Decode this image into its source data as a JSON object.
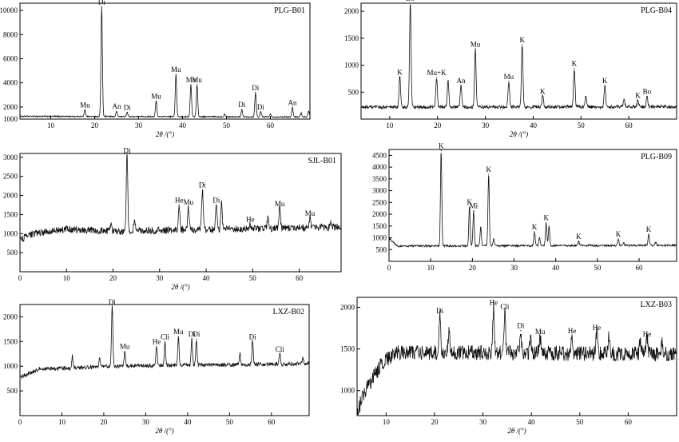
{
  "chart_data": [
    {
      "type": "line",
      "title": "PLG-B01",
      "xlabel": "2θ /(°)",
      "ylabel": "",
      "xlim": [
        3,
        69
      ],
      "ylim": [
        1000,
        10600
      ],
      "xticks": [
        10,
        20,
        30,
        40,
        50,
        60
      ],
      "yticks": [
        1000,
        2000,
        4000,
        6000,
        8000,
        10000
      ],
      "baseline": [
        [
          3,
          1230
        ],
        [
          69,
          1180
        ]
      ],
      "noise": 50,
      "peaks": [
        {
          "x": 17.8,
          "y": 1750,
          "label": "Mu"
        },
        {
          "x": 21.6,
          "y": 10300,
          "label": "Di"
        },
        {
          "x": 25.0,
          "y": 1650,
          "label": "An"
        },
        {
          "x": 27.4,
          "y": 1550,
          "label": "Di"
        },
        {
          "x": 34.0,
          "y": 2500,
          "label": "Mu"
        },
        {
          "x": 38.5,
          "y": 4700,
          "label": "Mu"
        },
        {
          "x": 41.9,
          "y": 3850,
          "label": "Mu"
        },
        {
          "x": 43.3,
          "y": 3850,
          "label": "Mu"
        },
        {
          "x": 53.5,
          "y": 1800,
          "label": "Di"
        },
        {
          "x": 56.6,
          "y": 3200,
          "label": "Di"
        },
        {
          "x": 57.8,
          "y": 1600,
          "label": "Di"
        },
        {
          "x": 65.0,
          "y": 1950,
          "label": "An"
        },
        {
          "x": 49.6,
          "y": 1420,
          "label": ""
        },
        {
          "x": 60.0,
          "y": 1400,
          "label": ""
        },
        {
          "x": 67.0,
          "y": 1500,
          "label": ""
        },
        {
          "x": 68.7,
          "y": 1650,
          "label": ""
        }
      ]
    },
    {
      "type": "line",
      "title": "PLG-B04",
      "xlabel": "2θ /(°)",
      "ylabel": "",
      "xlim": [
        4,
        70
      ],
      "ylim": [
        0,
        2150
      ],
      "xticks": [
        10,
        20,
        30,
        40,
        50,
        60
      ],
      "yticks": [
        500,
        1000,
        1500,
        2000
      ],
      "baseline": [
        [
          4,
          220
        ],
        [
          69,
          230
        ]
      ],
      "noise": 30,
      "peaks": [
        {
          "x": 12.1,
          "y": 780,
          "label": "K"
        },
        {
          "x": 14.3,
          "y": 2150,
          "label": "Bo"
        },
        {
          "x": 19.8,
          "y": 770,
          "label": "Mu+K"
        },
        {
          "x": 22.2,
          "y": 720,
          "label": ""
        },
        {
          "x": 24.9,
          "y": 620,
          "label": "An"
        },
        {
          "x": 27.9,
          "y": 1300,
          "label": "Mu"
        },
        {
          "x": 34.9,
          "y": 700,
          "label": "Mu"
        },
        {
          "x": 37.7,
          "y": 1380,
          "label": "K"
        },
        {
          "x": 42.0,
          "y": 420,
          "label": "K"
        },
        {
          "x": 48.6,
          "y": 940,
          "label": "K"
        },
        {
          "x": 55.0,
          "y": 620,
          "label": "K"
        },
        {
          "x": 61.9,
          "y": 350,
          "label": "K"
        },
        {
          "x": 63.8,
          "y": 420,
          "label": "Bo"
        },
        {
          "x": 51.0,
          "y": 420,
          "label": ""
        },
        {
          "x": 59.0,
          "y": 360,
          "label": ""
        }
      ]
    },
    {
      "type": "line",
      "title": "SJL-B01",
      "xlabel": "2θ /(°)",
      "ylabel": "",
      "xlim": [
        0,
        69
      ],
      "ylim": [
        0,
        3100
      ],
      "xticks": [
        0,
        10,
        20,
        30,
        40,
        50,
        60
      ],
      "yticks": [
        500,
        1000,
        1500,
        2000,
        2500,
        3000
      ],
      "baseline": [
        [
          0,
          850
        ],
        [
          3,
          1000
        ],
        [
          10,
          1120
        ],
        [
          20,
          1060
        ],
        [
          69,
          1170
        ]
      ],
      "noise": 90,
      "peaks": [
        {
          "x": 23.0,
          "y": 3050,
          "label": "Di"
        },
        {
          "x": 34.2,
          "y": 1750,
          "label": "He"
        },
        {
          "x": 36.2,
          "y": 1700,
          "label": "Mu"
        },
        {
          "x": 39.2,
          "y": 2150,
          "label": "Di"
        },
        {
          "x": 42.2,
          "y": 1750,
          "label": "Di"
        },
        {
          "x": 43.3,
          "y": 1800,
          "label": ""
        },
        {
          "x": 49.5,
          "y": 1250,
          "label": "He"
        },
        {
          "x": 53.3,
          "y": 1450,
          "label": ""
        },
        {
          "x": 55.8,
          "y": 1650,
          "label": "Mu"
        },
        {
          "x": 62.3,
          "y": 1400,
          "label": "Mu"
        },
        {
          "x": 24.6,
          "y": 1350,
          "label": ""
        },
        {
          "x": 19.5,
          "y": 1250,
          "label": ""
        },
        {
          "x": 66.8,
          "y": 1350,
          "label": ""
        }
      ]
    },
    {
      "type": "line",
      "title": "PLG-B09",
      "xlabel": "",
      "ylabel": "",
      "xlim": [
        0,
        69
      ],
      "ylim": [
        0,
        4750
      ],
      "xticks": [
        0,
        10,
        20,
        30,
        40,
        50,
        60
      ],
      "yticks": [
        500,
        1000,
        1500,
        2000,
        2500,
        3000,
        3500,
        4000,
        4500
      ],
      "baseline": [
        [
          0,
          1000
        ],
        [
          2,
          650
        ],
        [
          69,
          680
        ]
      ],
      "noise": 40,
      "peaks": [
        {
          "x": 12.5,
          "y": 4700,
          "label": "K"
        },
        {
          "x": 19.3,
          "y": 2300,
          "label": "K"
        },
        {
          "x": 20.3,
          "y": 2150,
          "label": "Mi"
        },
        {
          "x": 22.0,
          "y": 1450,
          "label": ""
        },
        {
          "x": 23.9,
          "y": 3700,
          "label": "K"
        },
        {
          "x": 25.1,
          "y": 950,
          "label": ""
        },
        {
          "x": 34.9,
          "y": 1250,
          "label": "K"
        },
        {
          "x": 36.1,
          "y": 1000,
          "label": ""
        },
        {
          "x": 37.7,
          "y": 1650,
          "label": "K"
        },
        {
          "x": 38.4,
          "y": 1500,
          "label": ""
        },
        {
          "x": 45.5,
          "y": 850,
          "label": "K"
        },
        {
          "x": 55.0,
          "y": 950,
          "label": "K"
        },
        {
          "x": 62.3,
          "y": 1150,
          "label": "K"
        },
        {
          "x": 56.3,
          "y": 800,
          "label": ""
        },
        {
          "x": 64.0,
          "y": 800,
          "label": ""
        }
      ]
    },
    {
      "type": "line",
      "title": "LXZ-B02",
      "xlabel": "2θ /(°)",
      "ylabel": "",
      "xlim": [
        0,
        69
      ],
      "ylim": [
        0,
        2250
      ],
      "xticks": [
        0,
        10,
        20,
        30,
        40,
        50,
        60
      ],
      "yticks": [
        500,
        1000,
        1500,
        2000
      ],
      "baseline": [
        [
          0,
          780
        ],
        [
          5,
          950
        ],
        [
          12,
          960
        ],
        [
          20,
          1000
        ],
        [
          69,
          1050
        ]
      ],
      "noise": 40,
      "peaks": [
        {
          "x": 12.5,
          "y": 1200,
          "label": ""
        },
        {
          "x": 22.0,
          "y": 2200,
          "label": "Di"
        },
        {
          "x": 25.0,
          "y": 1300,
          "label": "Mu"
        },
        {
          "x": 32.6,
          "y": 1400,
          "label": "He"
        },
        {
          "x": 34.6,
          "y": 1500,
          "label": "Cli"
        },
        {
          "x": 37.8,
          "y": 1600,
          "label": "Mu"
        },
        {
          "x": 41.0,
          "y": 1550,
          "label": "Di"
        },
        {
          "x": 42.1,
          "y": 1550,
          "label": "Di"
        },
        {
          "x": 52.5,
          "y": 1250,
          "label": ""
        },
        {
          "x": 55.5,
          "y": 1500,
          "label": "Di"
        },
        {
          "x": 62.0,
          "y": 1250,
          "label": "Cli"
        },
        {
          "x": 19.0,
          "y": 1150,
          "label": ""
        },
        {
          "x": 67.5,
          "y": 1180,
          "label": ""
        }
      ]
    },
    {
      "type": "line",
      "title": "LXZ-B03",
      "xlabel": "2θ /(°)",
      "ylabel": "",
      "xlim": [
        4,
        70
      ],
      "ylim": [
        700,
        2120
      ],
      "xticks": [
        10,
        20,
        30,
        40,
        50,
        60
      ],
      "yticks": [
        1000,
        1500,
        2000
      ],
      "baseline": [
        [
          4,
          700
        ],
        [
          5,
          920
        ],
        [
          9,
          1320
        ],
        [
          12,
          1460
        ],
        [
          70,
          1440
        ]
      ],
      "noise": 90,
      "peaks": [
        {
          "x": 21.1,
          "y": 1900,
          "label": "Di"
        },
        {
          "x": 23.0,
          "y": 1700,
          "label": ""
        },
        {
          "x": 32.2,
          "y": 2000,
          "label": "He"
        },
        {
          "x": 34.5,
          "y": 1950,
          "label": "Cli"
        },
        {
          "x": 37.8,
          "y": 1720,
          "label": "Di"
        },
        {
          "x": 39.8,
          "y": 1650,
          "label": ""
        },
        {
          "x": 41.8,
          "y": 1650,
          "label": "Mu"
        },
        {
          "x": 48.4,
          "y": 1660,
          "label": "He"
        },
        {
          "x": 53.5,
          "y": 1700,
          "label": "He"
        },
        {
          "x": 56.0,
          "y": 1650,
          "label": ""
        },
        {
          "x": 62.5,
          "y": 1600,
          "label": ""
        },
        {
          "x": 63.9,
          "y": 1620,
          "label": "He"
        },
        {
          "x": 67.0,
          "y": 1560,
          "label": ""
        }
      ]
    }
  ]
}
